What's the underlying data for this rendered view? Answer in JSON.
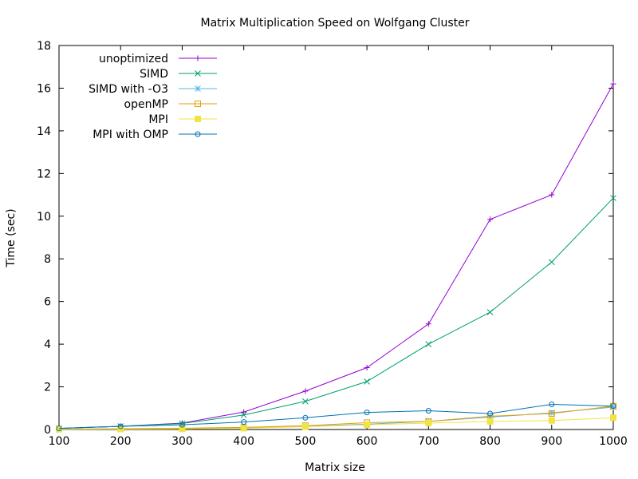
{
  "chart_data": {
    "type": "line",
    "title": "Matrix Multiplication Speed on Wolfgang Cluster",
    "xlabel": "Matrix size",
    "ylabel": "Time (sec)",
    "xlim": [
      100,
      1000
    ],
    "ylim": [
      0,
      18
    ],
    "x_ticks": [
      100,
      200,
      300,
      400,
      500,
      600,
      700,
      800,
      900,
      1000
    ],
    "y_ticks": [
      0,
      2,
      4,
      6,
      8,
      10,
      12,
      14,
      16,
      18
    ],
    "grid": false,
    "legend_position": "top-left",
    "x": [
      100,
      200,
      300,
      400,
      500,
      600,
      700,
      800,
      900,
      1000
    ],
    "series": [
      {
        "name": "unoptimized",
        "color": "#9400d3",
        "marker": "plus",
        "values": [
          0.05,
          0.15,
          0.3,
          0.82,
          1.8,
          2.9,
          4.95,
          9.85,
          11.0,
          16.2
        ]
      },
      {
        "name": "SIMD",
        "color": "#009e73",
        "marker": "cross",
        "values": [
          0.05,
          0.15,
          0.28,
          0.68,
          1.32,
          2.25,
          4.0,
          5.5,
          7.85,
          10.85
        ]
      },
      {
        "name": "SIMD with -O3",
        "color": "#56b4e9",
        "marker": "star",
        "values": [
          0.02,
          0.03,
          0.05,
          0.08,
          0.15,
          0.25,
          0.38,
          0.58,
          0.78,
          1.05
        ]
      },
      {
        "name": "openMP",
        "color": "#e69f00",
        "marker": "square",
        "values": [
          0.02,
          0.04,
          0.06,
          0.1,
          0.18,
          0.32,
          0.38,
          0.62,
          0.75,
          1.1
        ]
      },
      {
        "name": "MPI",
        "color": "#f0e442",
        "marker": "filled-square",
        "values": [
          0.01,
          0.02,
          0.03,
          0.06,
          0.13,
          0.22,
          0.3,
          0.38,
          0.42,
          0.55
        ]
      },
      {
        "name": "MPI with OMP",
        "color": "#0072b2",
        "marker": "circle",
        "values": [
          0.05,
          0.15,
          0.22,
          0.35,
          0.55,
          0.8,
          0.88,
          0.75,
          1.18,
          1.1
        ]
      }
    ]
  }
}
